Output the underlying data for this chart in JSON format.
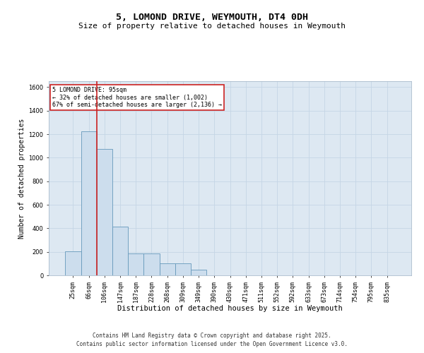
{
  "title": "5, LOMOND DRIVE, WEYMOUTH, DT4 0DH",
  "subtitle": "Size of property relative to detached houses in Weymouth",
  "xlabel": "Distribution of detached houses by size in Weymouth",
  "ylabel": "Number of detached properties",
  "categories": [
    "25sqm",
    "66sqm",
    "106sqm",
    "147sqm",
    "187sqm",
    "228sqm",
    "268sqm",
    "309sqm",
    "349sqm",
    "390sqm",
    "430sqm",
    "471sqm",
    "511sqm",
    "552sqm",
    "592sqm",
    "633sqm",
    "673sqm",
    "714sqm",
    "754sqm",
    "795sqm",
    "835sqm"
  ],
  "values": [
    205,
    1225,
    1075,
    415,
    185,
    185,
    105,
    100,
    50,
    0,
    0,
    0,
    0,
    0,
    0,
    0,
    0,
    0,
    0,
    0,
    0
  ],
  "bar_color": "#ccdded",
  "bar_edge_color": "#6699bb",
  "grid_color": "#c5d5e5",
  "plot_bg_color": "#dde8f2",
  "vline_color": "#cc2222",
  "annotation_text": "5 LOMOND DRIVE: 95sqm\n← 32% of detached houses are smaller (1,002)\n67% of semi-detached houses are larger (2,136) →",
  "annotation_box_color": "#cc2222",
  "ylim": [
    0,
    1650
  ],
  "yticks": [
    0,
    200,
    400,
    600,
    800,
    1000,
    1200,
    1400,
    1600
  ],
  "footer_line1": "Contains HM Land Registry data © Crown copyright and database right 2025.",
  "footer_line2": "Contains public sector information licensed under the Open Government Licence v3.0.",
  "title_fontsize": 9.5,
  "subtitle_fontsize": 8,
  "tick_fontsize": 6,
  "xlabel_fontsize": 7.5,
  "ylabel_fontsize": 7,
  "annotation_fontsize": 6,
  "footer_fontsize": 5.5
}
